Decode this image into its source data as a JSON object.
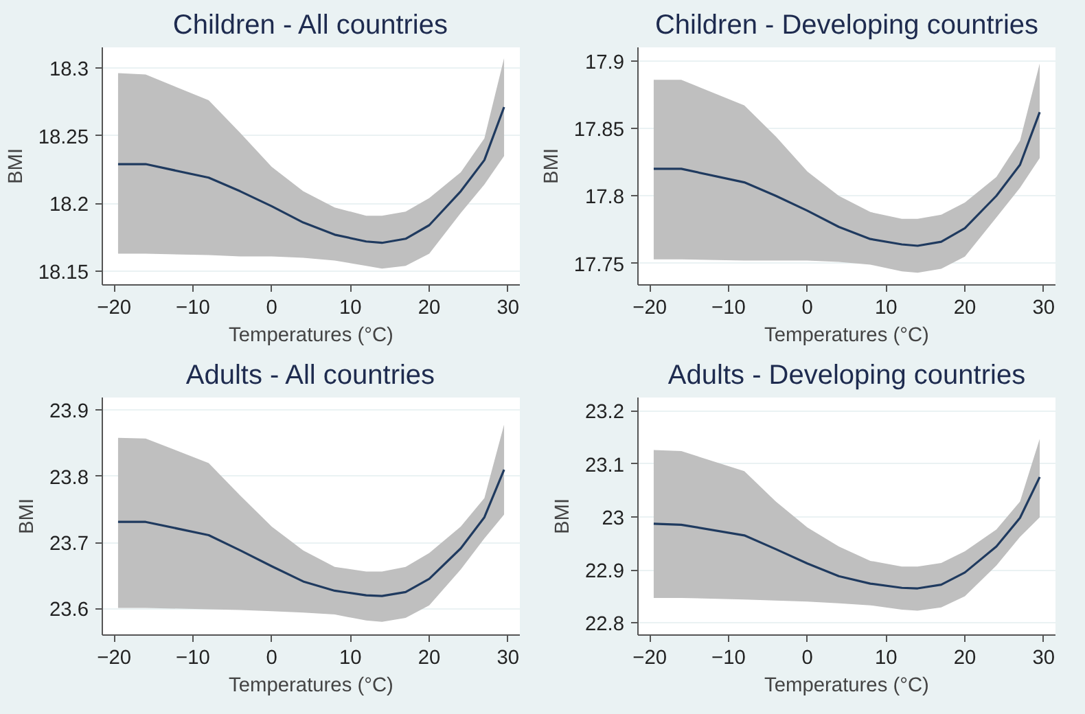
{
  "chart_data": [
    {
      "type": "line",
      "title": "Children - All countries",
      "xlabel": "Temperatures (°C)",
      "ylabel": "BMI",
      "x": [
        -19.5,
        -16,
        -8,
        -4,
        0,
        4,
        8,
        12,
        14,
        17,
        20,
        24,
        27,
        29.5
      ],
      "xlim": [
        -21.5,
        31.5
      ],
      "xticks": [
        -20,
        -10,
        0,
        10,
        20,
        30
      ],
      "ylim": [
        18.14,
        18.315
      ],
      "yticks": [
        18.15,
        18.2,
        18.25,
        18.3
      ],
      "grid": "y",
      "marker": "none",
      "line_style": "solid",
      "series": [
        {
          "color": "#1f3a5f",
          "values": [
            18.229,
            18.229,
            18.219,
            18.209,
            18.198,
            18.186,
            18.177,
            18.172,
            18.171,
            18.174,
            18.184,
            18.209,
            18.232,
            18.271
          ],
          "upper": [
            18.296,
            18.295,
            18.276,
            18.252,
            18.227,
            18.209,
            18.197,
            18.191,
            18.191,
            18.194,
            18.204,
            18.223,
            18.248,
            18.307
          ],
          "lower": [
            18.163,
            18.163,
            18.162,
            18.161,
            18.161,
            18.16,
            18.158,
            18.154,
            18.152,
            18.154,
            18.163,
            18.193,
            18.214,
            18.235
          ]
        }
      ]
    },
    {
      "type": "line",
      "title": "Children - Developing countries",
      "xlabel": "Temperatures (°C)",
      "ylabel": "BMI",
      "x": [
        -19.5,
        -16,
        -8,
        -4,
        0,
        4,
        8,
        12,
        14,
        17,
        20,
        24,
        27,
        29.5
      ],
      "xlim": [
        -21.5,
        31.5
      ],
      "xticks": [
        -20,
        -10,
        0,
        10,
        20,
        30
      ],
      "ylim": [
        17.734,
        17.91
      ],
      "yticks": [
        17.75,
        17.8,
        17.85,
        17.9
      ],
      "grid": "y",
      "marker": "none",
      "line_style": "solid",
      "series": [
        {
          "color": "#1f3a5f",
          "values": [
            17.82,
            17.82,
            17.81,
            17.8,
            17.789,
            17.777,
            17.768,
            17.764,
            17.763,
            17.766,
            17.776,
            17.8,
            17.823,
            17.862
          ],
          "upper": [
            17.886,
            17.886,
            17.867,
            17.844,
            17.818,
            17.8,
            17.788,
            17.783,
            17.783,
            17.786,
            17.795,
            17.814,
            17.841,
            17.898
          ],
          "lower": [
            17.753,
            17.753,
            17.752,
            17.752,
            17.752,
            17.751,
            17.749,
            17.744,
            17.743,
            17.746,
            17.755,
            17.784,
            17.806,
            17.828
          ]
        }
      ]
    },
    {
      "type": "line",
      "title": "Adults - All countries",
      "xlabel": "Temperatures (°C)",
      "ylabel": "BMI",
      "x": [
        -19.5,
        -16,
        -8,
        -4,
        0,
        4,
        8,
        12,
        14,
        17,
        20,
        24,
        27,
        29.5
      ],
      "xlim": [
        -21.5,
        31.5
      ],
      "xticks": [
        -20,
        -10,
        0,
        10,
        20,
        30
      ],
      "ylim": [
        23.56,
        23.919
      ],
      "yticks": [
        23.6,
        23.7,
        23.8,
        23.9
      ],
      "grid": "y",
      "marker": "none",
      "line_style": "solid",
      "series": [
        {
          "color": "#1f3a5f",
          "values": [
            23.731,
            23.731,
            23.711,
            23.688,
            23.664,
            23.641,
            23.627,
            23.62,
            23.619,
            23.625,
            23.645,
            23.691,
            23.738,
            23.81
          ],
          "upper": [
            23.858,
            23.857,
            23.82,
            23.771,
            23.724,
            23.688,
            23.663,
            23.656,
            23.656,
            23.663,
            23.684,
            23.724,
            23.767,
            23.878
          ],
          "lower": [
            23.601,
            23.601,
            23.599,
            23.598,
            23.596,
            23.594,
            23.591,
            23.582,
            23.58,
            23.586,
            23.605,
            23.659,
            23.706,
            23.742
          ]
        }
      ]
    },
    {
      "type": "line",
      "title": "Adults - Developing countries",
      "xlabel": "Temperatures (°C)",
      "ylabel": "BMI",
      "x": [
        -19.5,
        -16,
        -8,
        -4,
        0,
        4,
        8,
        12,
        14,
        17,
        20,
        24,
        27,
        29.5
      ],
      "xlim": [
        -21.5,
        31.5
      ],
      "xticks": [
        -20,
        -10,
        0,
        10,
        20,
        30
      ],
      "ylim": [
        22.777,
        23.225
      ],
      "yticks": [
        22.8,
        22.9,
        23,
        23.1,
        23.2
      ],
      "grid": "y",
      "marker": "none",
      "line_style": "solid",
      "series": [
        {
          "color": "#1f3a5f",
          "values": [
            22.987,
            22.985,
            22.965,
            22.939,
            22.912,
            22.888,
            22.874,
            22.866,
            22.865,
            22.872,
            22.895,
            22.944,
            22.998,
            23.075
          ],
          "upper": [
            23.126,
            23.124,
            23.086,
            23.029,
            22.98,
            22.944,
            22.917,
            22.906,
            22.906,
            22.913,
            22.935,
            22.976,
            23.029,
            23.147
          ],
          "lower": [
            22.847,
            22.847,
            22.844,
            22.842,
            22.84,
            22.837,
            22.833,
            22.825,
            22.823,
            22.829,
            22.85,
            22.908,
            22.962,
            22.999
          ]
        }
      ]
    }
  ]
}
